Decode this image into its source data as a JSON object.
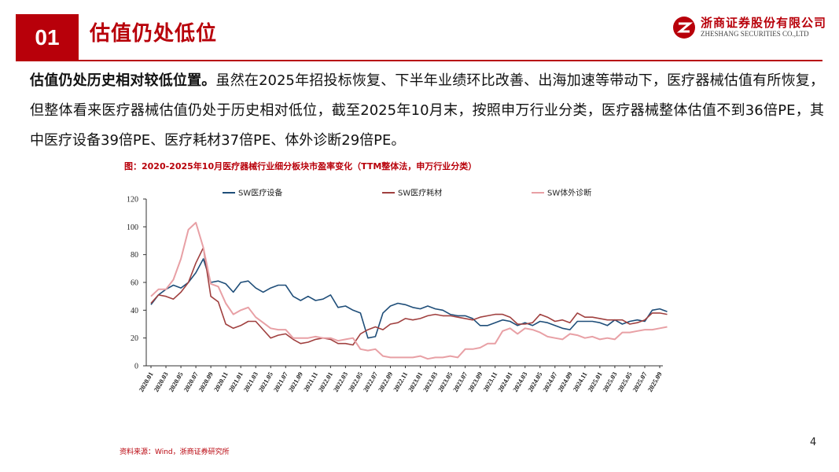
{
  "header": {
    "section_number": "01",
    "title": "估值仍处低位",
    "logo_cn": "浙商证券股份有限公司",
    "logo_en": "ZHESHANG SECURITIES CO.,LTD"
  },
  "body": {
    "lead": "估值仍处历史相对较低位置。",
    "text": "虽然在2025年招投标恢复、下半年业绩环比改善、出海加速等带动下，医疗器械估值有所恢复，但整体看来医疗器械估值仍处于历史相对低位，截至2025年10月末，按照申万行业分类，医疗器械整体估值不到36倍PE，其中医疗设备39倍PE、医疗耗材37倍PE、体外诊断29倍PE。"
  },
  "chart_title": "图：2020-2025年10月医疗器械行业细分板块市盈率变化（TTM整体法，申万行业分类）",
  "source": "资料来源：Wind，浙商证券研究所",
  "page_number": "4",
  "chart_data": {
    "type": "line",
    "ylim": [
      0,
      120
    ],
    "y_ticks": [
      0,
      20,
      40,
      60,
      80,
      100,
      120
    ],
    "x_tick_labels": [
      "2020.01",
      "2020.03",
      "2020.05",
      "2020.07",
      "2020.09",
      "2020.11",
      "2021.01",
      "2021.03",
      "2021.05",
      "2021.07",
      "2021.09",
      "2021.11",
      "2022.01",
      "2022.03",
      "2022.05",
      "2022.07",
      "2022.09",
      "2022.11",
      "2023.01",
      "2023.03",
      "2023.05",
      "2023.07",
      "2023.09",
      "2023.11",
      "2024.01",
      "2024.03",
      "2024.05",
      "2024.07",
      "2024.09",
      "2024.11",
      "2025.01",
      "2025.03",
      "2025.05",
      "2025.07",
      "2025.09"
    ],
    "legend_position": "top",
    "grid": false,
    "series": [
      {
        "name": "SW医疗设备",
        "color": "#1f4e79",
        "values": [
          [
            0,
            44
          ],
          [
            0.5,
            51
          ],
          [
            1,
            55
          ],
          [
            1.5,
            58
          ],
          [
            2,
            56
          ],
          [
            2.5,
            60
          ],
          [
            3,
            67
          ],
          [
            3.5,
            77
          ],
          [
            4,
            60
          ],
          [
            4.5,
            61
          ],
          [
            5,
            59
          ],
          [
            5.5,
            53
          ],
          [
            6,
            60
          ],
          [
            6.5,
            61
          ],
          [
            7,
            56
          ],
          [
            7.5,
            53
          ],
          [
            8,
            56
          ],
          [
            8.5,
            58
          ],
          [
            9,
            58
          ],
          [
            9.5,
            50
          ],
          [
            10,
            47
          ],
          [
            10.5,
            50
          ],
          [
            11,
            47
          ],
          [
            11.5,
            48
          ],
          [
            12,
            51
          ],
          [
            12.5,
            42
          ],
          [
            13,
            43
          ],
          [
            13.5,
            40
          ],
          [
            14,
            38
          ],
          [
            14.5,
            20
          ],
          [
            15,
            21
          ],
          [
            15.5,
            38
          ],
          [
            16,
            43
          ],
          [
            16.5,
            45
          ],
          [
            17,
            44
          ],
          [
            17.5,
            42
          ],
          [
            18,
            41
          ],
          [
            18.5,
            43
          ],
          [
            19,
            41
          ],
          [
            19.5,
            40
          ],
          [
            20,
            37
          ],
          [
            20.5,
            36
          ],
          [
            21,
            36
          ],
          [
            21.5,
            34
          ],
          [
            22,
            29
          ],
          [
            22.5,
            29
          ],
          [
            23,
            31
          ],
          [
            23.5,
            33
          ],
          [
            24,
            32
          ],
          [
            24.5,
            29
          ],
          [
            25,
            31
          ],
          [
            25.5,
            29
          ],
          [
            26,
            32
          ],
          [
            26.5,
            31
          ],
          [
            27,
            29
          ],
          [
            27.5,
            27
          ],
          [
            28,
            26
          ],
          [
            28.5,
            32
          ],
          [
            29,
            32
          ],
          [
            29.5,
            32
          ],
          [
            30,
            31
          ],
          [
            30.5,
            29
          ],
          [
            31,
            33
          ],
          [
            31.5,
            30
          ],
          [
            32,
            32
          ],
          [
            32.5,
            33
          ],
          [
            33,
            32
          ],
          [
            33.5,
            40
          ],
          [
            34,
            41
          ],
          [
            34.5,
            39
          ]
        ]
      },
      {
        "name": "SW医疗耗材",
        "color": "#a0403f",
        "values": [
          [
            0,
            45
          ],
          [
            0.5,
            51
          ],
          [
            1,
            50
          ],
          [
            1.5,
            48
          ],
          [
            2,
            53
          ],
          [
            2.5,
            60
          ],
          [
            3,
            74
          ],
          [
            3.5,
            85
          ],
          [
            4,
            50
          ],
          [
            4.5,
            46
          ],
          [
            5,
            30
          ],
          [
            5.5,
            27
          ],
          [
            6,
            29
          ],
          [
            6.5,
            32
          ],
          [
            7,
            32
          ],
          [
            7.5,
            26
          ],
          [
            8,
            20
          ],
          [
            8.5,
            22
          ],
          [
            9,
            23
          ],
          [
            9.5,
            19
          ],
          [
            10,
            16
          ],
          [
            10.5,
            17
          ],
          [
            11,
            19
          ],
          [
            11.5,
            20
          ],
          [
            12,
            19
          ],
          [
            12.5,
            16
          ],
          [
            13,
            16
          ],
          [
            13.5,
            15
          ],
          [
            14,
            23
          ],
          [
            14.5,
            26
          ],
          [
            15,
            28
          ],
          [
            15.5,
            26
          ],
          [
            16,
            30
          ],
          [
            16.5,
            31
          ],
          [
            17,
            34
          ],
          [
            17.5,
            33
          ],
          [
            18,
            34
          ],
          [
            18.5,
            36
          ],
          [
            19,
            37
          ],
          [
            19.5,
            36
          ],
          [
            20,
            36
          ],
          [
            20.5,
            35
          ],
          [
            21,
            34
          ],
          [
            21.5,
            33
          ],
          [
            22,
            35
          ],
          [
            22.5,
            36
          ],
          [
            23,
            37
          ],
          [
            23.5,
            37
          ],
          [
            24,
            35
          ],
          [
            24.5,
            30
          ],
          [
            25,
            30
          ],
          [
            25.5,
            31
          ],
          [
            26,
            37
          ],
          [
            26.5,
            35
          ],
          [
            27,
            32
          ],
          [
            27.5,
            33
          ],
          [
            28,
            31
          ],
          [
            28.5,
            38
          ],
          [
            29,
            35
          ],
          [
            29.5,
            35
          ],
          [
            30,
            34
          ],
          [
            30.5,
            33
          ],
          [
            31,
            33
          ],
          [
            31.5,
            33
          ],
          [
            32,
            30
          ],
          [
            32.5,
            31
          ],
          [
            33,
            33
          ],
          [
            33.5,
            38
          ],
          [
            34,
            38
          ],
          [
            34.5,
            37
          ]
        ]
      },
      {
        "name": "SW体外诊断",
        "color": "#e8a0a5",
        "values": [
          [
            0,
            50
          ],
          [
            0.5,
            55
          ],
          [
            1,
            55
          ],
          [
            1.5,
            62
          ],
          [
            2,
            77
          ],
          [
            2.5,
            98
          ],
          [
            3,
            103
          ],
          [
            3.5,
            85
          ],
          [
            4,
            59
          ],
          [
            4.5,
            57
          ],
          [
            5,
            45
          ],
          [
            5.5,
            37
          ],
          [
            6,
            40
          ],
          [
            6.5,
            42
          ],
          [
            7,
            35
          ],
          [
            7.5,
            31
          ],
          [
            8,
            27
          ],
          [
            8.5,
            26
          ],
          [
            9,
            26
          ],
          [
            9.5,
            20
          ],
          [
            10,
            20
          ],
          [
            10.5,
            20
          ],
          [
            11,
            21
          ],
          [
            11.5,
            20
          ],
          [
            12,
            20
          ],
          [
            12.5,
            18
          ],
          [
            13,
            19
          ],
          [
            13.5,
            20
          ],
          [
            14,
            12
          ],
          [
            14.5,
            11
          ],
          [
            15,
            12
          ],
          [
            15.5,
            7
          ],
          [
            16,
            6
          ],
          [
            16.5,
            6
          ],
          [
            17,
            6
          ],
          [
            17.5,
            6
          ],
          [
            18,
            7
          ],
          [
            18.5,
            5
          ],
          [
            19,
            6
          ],
          [
            19.5,
            6
          ],
          [
            20,
            7
          ],
          [
            20.5,
            6
          ],
          [
            21,
            12
          ],
          [
            21.5,
            12
          ],
          [
            22,
            13
          ],
          [
            22.5,
            16
          ],
          [
            23,
            16
          ],
          [
            23.5,
            25
          ],
          [
            24,
            27
          ],
          [
            24.5,
            23
          ],
          [
            25,
            27
          ],
          [
            25.5,
            26
          ],
          [
            26,
            24
          ],
          [
            26.5,
            21
          ],
          [
            27,
            20
          ],
          [
            27.5,
            19
          ],
          [
            28,
            23
          ],
          [
            28.5,
            22
          ],
          [
            29,
            20
          ],
          [
            29.5,
            21
          ],
          [
            30,
            19
          ],
          [
            30.5,
            20
          ],
          [
            31,
            19
          ],
          [
            31.5,
            24
          ],
          [
            32,
            24
          ],
          [
            32.5,
            25
          ],
          [
            33,
            26
          ],
          [
            33.5,
            26
          ],
          [
            34,
            27
          ],
          [
            34.5,
            28
          ]
        ]
      }
    ]
  }
}
